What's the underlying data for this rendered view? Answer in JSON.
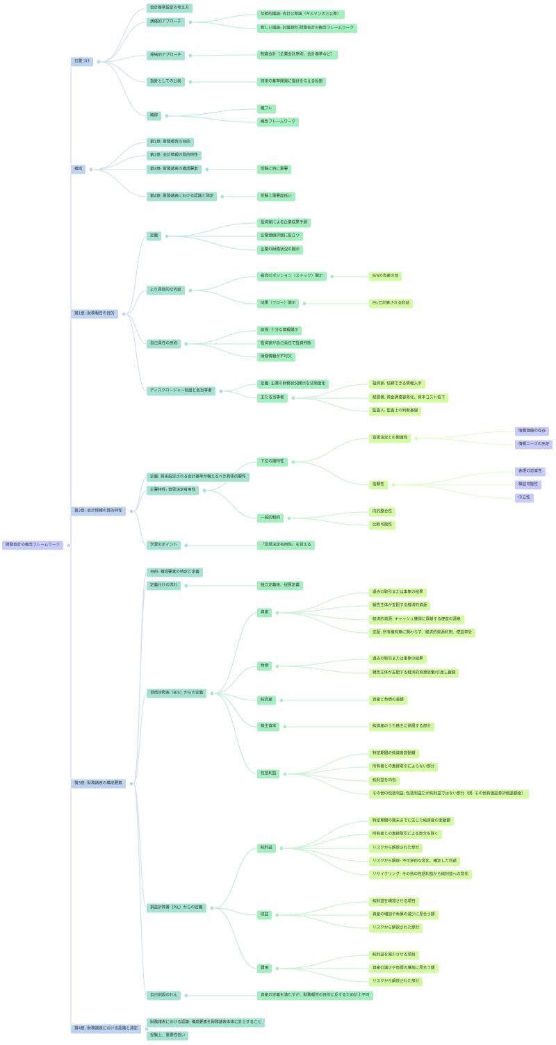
{
  "colors": {
    "root": "#c6ccfb",
    "level1": "#bcd3f2",
    "level2": "#a3e3d0",
    "level3": "#a4efbf",
    "level4": "#d3fba2",
    "level5": "#c7cbfb"
  },
  "tree": {
    "label": "財務会計の概念フレームワーク",
    "children": [
      {
        "label": "位置づけ",
        "children": [
          {
            "label": "会計基準設定の考え方"
          },
          {
            "label": "演繹的アプローチ",
            "children": [
              {
                "label": "伝統的議論: 会計公準論（ギルマンの三公準）"
              },
              {
                "label": "新しい議論: 討議資料 財務会計の概念フレームワーク"
              }
            ]
          },
          {
            "label": "帰納的アプローチ",
            "children": [
              {
                "label": "制度会計（企業会計原則、会計基準など）"
              }
            ]
          },
          {
            "label": "指針としての公表",
            "children": [
              {
                "label": "将来の基準開発に指針を与える役割"
              }
            ]
          },
          {
            "label": "略称",
            "children": [
              {
                "label": "概フレ"
              },
              {
                "label": "概念フレームワーク"
              }
            ]
          }
        ]
      },
      {
        "label": "構成",
        "children": [
          {
            "label": "第1章: 財務報告の目的"
          },
          {
            "label": "第2章: 会計情報の質的特性"
          },
          {
            "label": "第3章: 財務諸表の構成要素",
            "children": [
              {
                "label": "受験上特に重要"
              }
            ]
          },
          {
            "label": "第4章: 財務諸表における認識と測定",
            "children": [
              {
                "label": "受験上重要度低い"
              }
            ]
          }
        ]
      },
      {
        "label": "第1章: 財務報告の目的",
        "children": [
          {
            "label": "定義",
            "children": [
              {
                "label": "投資家による企業成果予測"
              },
              {
                "label": "企業価値評価に役立つ"
              },
              {
                "label": "企業の財務状況の開示"
              }
            ]
          },
          {
            "label": "より具体的な内容",
            "children": [
              {
                "label": "投資のポジション（ストック）開示",
                "children": [
                  {
                    "label": "B/Sの資産の部"
                  }
                ]
              },
              {
                "label": "成果（フロー）開示",
                "children": [
                  {
                    "label": "P/Lで計算される利益"
                  }
                ]
              }
            ]
          },
          {
            "label": "自己責任の原則",
            "children": [
              {
                "label": "前提: 十分な情報開示"
              },
              {
                "label": "投資家が自己責任で投資判断"
              },
              {
                "label": "財務情報が不可欠"
              }
            ]
          },
          {
            "label": "ディスクロージャー制度と各当事者",
            "children": [
              {
                "label": "定義: 企業の財務状況開示を法制度化"
              },
              {
                "label": "主たる当事者",
                "children": [
                  {
                    "label": "投資家: 信頼できる情報入手"
                  },
                  {
                    "label": "経営者: 資金調達容易化、資本コスト低下"
                  },
                  {
                    "label": "監査人: 監査上の判断基礎"
                  }
                ]
              }
            ]
          }
        ]
      },
      {
        "label": "第2章: 会計情報の質的特性",
        "children": [
          {
            "label": "定義: 将来設定される会計基準が備えるべき具体的要件"
          },
          {
            "label": "主要特性: 意思決定有用性",
            "children": [
              {
                "label": "下位の諸特性",
                "children": [
                  {
                    "label": "意思決定との関連性",
                    "children": [
                      {
                        "label": "情報価値の存在"
                      },
                      {
                        "label": "情報ニーズの充足"
                      }
                    ]
                  },
                  {
                    "label": "信頼性",
                    "children": [
                      {
                        "label": "表現の忠実性"
                      },
                      {
                        "label": "検証可能性"
                      },
                      {
                        "label": "中立性"
                      }
                    ]
                  }
                ]
              },
              {
                "label": "一般的制約",
                "children": [
                  {
                    "label": "内的整合性"
                  },
                  {
                    "label": "比較可能性"
                  }
                ]
              }
            ]
          },
          {
            "label": "学習のポイント",
            "children": [
              {
                "label": "「意思決定有用性」を覚える"
              }
            ]
          }
        ]
      },
      {
        "label": "第3章: 財務諸表の構成要素",
        "children": [
          {
            "label": "目的: 構成要素の特定と定義"
          },
          {
            "label": "定義付けの流れ",
            "children": [
              {
                "label": "独立定義後、従属定義"
              }
            ]
          },
          {
            "label": "貸借対照表（B/S）からの定義",
            "children": [
              {
                "label": "資産",
                "children": [
                  {
                    "label": "過去の取引または事象の結果"
                  },
                  {
                    "label": "報告主体が支配する経済的資源"
                  },
                  {
                    "label": "経済的資源: キャッシュ獲得に貢献する便益の源泉"
                  },
                  {
                    "label": "支配: 所有権有無に関わらず、経済的資源利用、便益享受"
                  }
                ]
              },
              {
                "label": "負債",
                "children": [
                  {
                    "label": "過去の取引または事象の結果"
                  },
                  {
                    "label": "報告主体が支配する経済的資源放棄/引渡し義務"
                  }
                ]
              },
              {
                "label": "純資産",
                "children": [
                  {
                    "label": "資産と負債の差額"
                  }
                ]
              },
              {
                "label": "株主資本",
                "children": [
                  {
                    "label": "純資産のうち株主に帰属する部分"
                  }
                ]
              },
              {
                "label": "包括利益",
                "children": [
                  {
                    "label": "特定期間の純資産変動額"
                  },
                  {
                    "label": "所有者との直接取引によらない部分"
                  },
                  {
                    "label": "純利益を内包"
                  },
                  {
                    "label": "その他の包括利益: 包括利益だが純利益ではない部分（例: その他有価証券評価差額金）"
                  }
                ]
              }
            ]
          },
          {
            "label": "損益計算書（P/L）からの定義",
            "children": [
              {
                "label": "純利益",
                "children": [
                  {
                    "label": "特定期間の期末までに生じた純資産の変動額"
                  },
                  {
                    "label": "所有者との直接取引による部分を除く"
                  },
                  {
                    "label": "リスクから解放された部分"
                  },
                  {
                    "label": "リスクから解放: 不可逆的な変化、確定した利益"
                  },
                  {
                    "label": "リサイクリング: その他の包括利益から純利益への変化"
                  }
                ]
              },
              {
                "label": "収益",
                "children": [
                  {
                    "label": "純利益を増加させる項目"
                  },
                  {
                    "label": "資産の増加や負債の減少に見合う額"
                  },
                  {
                    "label": "リスクから解放された部分"
                  }
                ]
              },
              {
                "label": "費用",
                "children": [
                  {
                    "label": "純利益を減少させる項目"
                  },
                  {
                    "label": "資産の減少や負債の増加に見合う額"
                  },
                  {
                    "label": "リスクから解放された部分"
                  }
                ]
              }
            ]
          },
          {
            "label": "自己創設のれん",
            "children": [
              {
                "label": "資産の定義を満たすが、財務報告の目的に反するため計上不可"
              }
            ]
          }
        ]
      },
      {
        "label": "第4章: 財務諸表における認識と測定",
        "children": [
          {
            "label": "財務諸表における認識: 構成要素を財務諸表本体に計上すること"
          },
          {
            "label": "受験上、重要性低い"
          }
        ]
      }
    ]
  }
}
